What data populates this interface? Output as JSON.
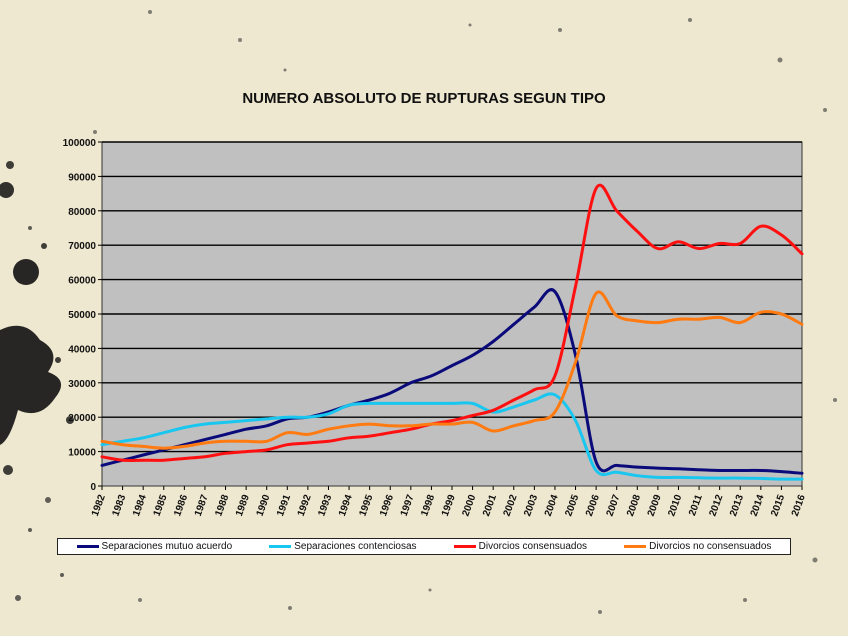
{
  "chart_data": {
    "type": "line",
    "title": "NUMERO ABSOLUTO DE RUPTURAS SEGUN TIPO",
    "xlabel": "",
    "ylabel": "",
    "ylim": [
      0,
      100000
    ],
    "yticks": [
      "0",
      "10000",
      "20000",
      "30000",
      "40000",
      "50000",
      "60000",
      "70000",
      "80000",
      "90000",
      "100000"
    ],
    "x": [
      "1982",
      "1983",
      "1984",
      "1985",
      "1986",
      "1987",
      "1988",
      "1989",
      "1990",
      "1991",
      "1992",
      "1993",
      "1994",
      "1995",
      "1996",
      "1997",
      "1998",
      "1999",
      "2000",
      "2001",
      "2002",
      "2003",
      "2004",
      "2005",
      "2006",
      "2007",
      "2008",
      "2009",
      "2010",
      "2011",
      "2012",
      "2013",
      "2014",
      "2015",
      "2016"
    ],
    "grid": true,
    "legend_position": "bottom",
    "series": [
      {
        "name": "Separaciones mutuo acuerdo",
        "color": "#0a0a7a",
        "values": [
          6000,
          7500,
          9000,
          10500,
          12000,
          13500,
          15000,
          16500,
          17500,
          19500,
          20000,
          21500,
          23500,
          25000,
          27000,
          30000,
          32000,
          35000,
          38000,
          42000,
          47000,
          52000,
          56500,
          38000,
          7000,
          6000,
          5500,
          5200,
          5000,
          4700,
          4500,
          4500,
          4500,
          4200,
          3700
        ]
      },
      {
        "name": "Separaciones contenciosas",
        "color": "#19c6f0",
        "values": [
          12000,
          13000,
          14000,
          15500,
          17000,
          18000,
          18500,
          19000,
          19500,
          20000,
          20000,
          21000,
          23500,
          24000,
          24000,
          24000,
          24000,
          24000,
          24000,
          21500,
          23000,
          25000,
          26500,
          19000,
          4500,
          4000,
          3000,
          2500,
          2500,
          2400,
          2300,
          2300,
          2200,
          2000,
          2000
        ]
      },
      {
        "name": "Divorcios consensuados",
        "color": "#ff1010",
        "values": [
          8500,
          7500,
          7500,
          7500,
          8000,
          8500,
          9500,
          10000,
          10500,
          12000,
          12500,
          13000,
          14000,
          14500,
          15500,
          16500,
          18000,
          19000,
          20500,
          22000,
          25000,
          28000,
          32000,
          58000,
          86500,
          80000,
          74000,
          69000,
          71000,
          69000,
          70500,
          70500,
          75500,
          73000,
          67500
        ]
      },
      {
        "name": "Divorcios no consensuados",
        "color": "#ff7a10",
        "values": [
          13000,
          12000,
          11500,
          11000,
          11500,
          12500,
          13000,
          13000,
          13000,
          15500,
          15000,
          16500,
          17500,
          18000,
          17500,
          17500,
          18000,
          18000,
          18500,
          16000,
          17500,
          19000,
          21500,
          36000,
          56000,
          49500,
          48000,
          47500,
          48500,
          48500,
          49000,
          47500,
          50500,
          50000,
          47000
        ]
      }
    ]
  }
}
